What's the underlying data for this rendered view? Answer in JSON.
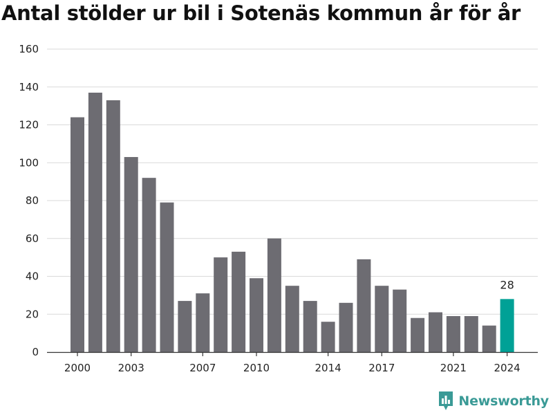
{
  "title": "Antal stölder ur bil i Sotenäs kommun år för år",
  "brand": {
    "name": "Newsworthy",
    "icon": "bar-chart-icon",
    "color": "#3a9a96"
  },
  "colors": {
    "bar": "#6d6c72",
    "highlight": "#00a196",
    "grid": "#d9d9d9",
    "axis": "#333333"
  },
  "chart_data": {
    "type": "bar",
    "categories": [
      "2000",
      "2001",
      "2002",
      "2003",
      "2004",
      "2005",
      "2006",
      "2007",
      "2008",
      "2009",
      "2010",
      "2011",
      "2012",
      "2013",
      "2014",
      "2015",
      "2016",
      "2017",
      "2018",
      "2019",
      "2020",
      "2021",
      "2022",
      "2023",
      "2024"
    ],
    "values": [
      124,
      137,
      133,
      103,
      92,
      79,
      27,
      31,
      50,
      53,
      39,
      60,
      35,
      27,
      16,
      26,
      49,
      35,
      33,
      18,
      21,
      19,
      19,
      14,
      28
    ],
    "x_tick_labels": [
      "2000",
      "2003",
      "2007",
      "2010",
      "2014",
      "2017",
      "2021",
      "2024"
    ],
    "y_ticks": [
      0,
      20,
      40,
      60,
      80,
      100,
      120,
      140,
      160
    ],
    "ylim": [
      0,
      160
    ],
    "grid": true,
    "highlight": {
      "category": "2024",
      "label": "28"
    }
  }
}
